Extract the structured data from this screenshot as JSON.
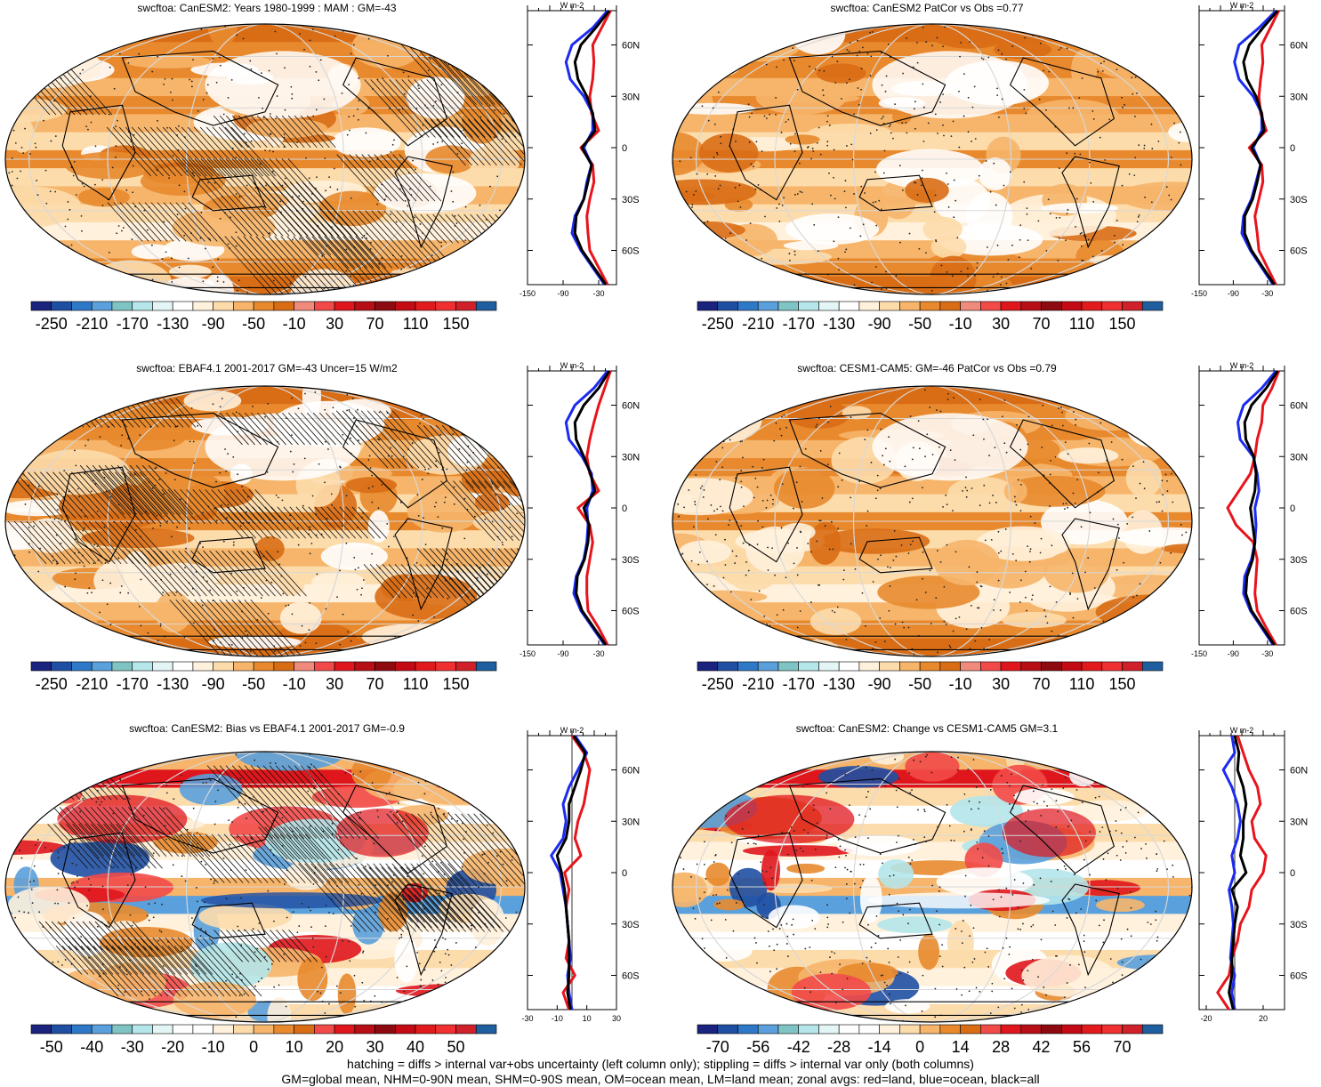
{
  "chart_data": [
    {
      "type": "heatmap",
      "title": "swcftoa: CanESM2: Years 1980-1999 : MAM : GM=-43",
      "colorbar_ticks": [
        "-250",
        "-210",
        "-170",
        "-130",
        "-90",
        "-50",
        "-10",
        "30",
        "70",
        "110",
        "150"
      ],
      "colorbar_colors": [
        "#1a237e",
        "#1f4fa3",
        "#2e78c8",
        "#5aa0dc",
        "#7fc4c4",
        "#b4e6ea",
        "#e3f5f5",
        "#ffffff",
        "#fff1dc",
        "#fddcac",
        "#f6b56a",
        "#e8892d",
        "#d96d15",
        "#f08a7a",
        "#f24a48",
        "#e0161d",
        "#b80e16",
        "#8c0a10",
        "#c40a14",
        "#e31a1c",
        "#f03030",
        "#d0202a",
        "#1f5fa0"
      ],
      "hatching": true,
      "stippling": true,
      "zonal": {
        "y_ticks": [
          "60N",
          "30N",
          "0",
          "30S",
          "60S"
        ],
        "x_ticks": [
          "-150",
          "-90",
          "-30"
        ],
        "unit": "W m-2",
        "lat": [
          80,
          70,
          60,
          50,
          40,
          30,
          20,
          10,
          0,
          -10,
          -20,
          -30,
          -40,
          -50,
          -60,
          -70,
          -80
        ],
        "land": [
          -10,
          -25,
          -40,
          -38,
          -40,
          -45,
          -42,
          -30,
          -60,
          -40,
          -38,
          -45,
          -50,
          -48,
          -45,
          -30,
          -15
        ],
        "ocean": [
          -15,
          -40,
          -75,
          -85,
          -78,
          -55,
          -40,
          -40,
          -55,
          -42,
          -50,
          -55,
          -70,
          -75,
          -60,
          -40,
          -20
        ],
        "all": [
          -12,
          -35,
          -60,
          -70,
          -65,
          -50,
          -40,
          -36,
          -58,
          -42,
          -48,
          -55,
          -68,
          -70,
          -58,
          -38,
          -18
        ]
      }
    },
    {
      "type": "heatmap",
      "title": "swcftoa: CanESM2 PatCor vs Obs =0.77",
      "colorbar_ticks": [
        "-250",
        "-210",
        "-170",
        "-130",
        "-90",
        "-50",
        "-10",
        "30",
        "70",
        "110",
        "150"
      ],
      "hatching": false,
      "stippling": true,
      "zonal": {
        "y_ticks": [
          "60N",
          "30N",
          "0",
          "30S",
          "60S"
        ],
        "x_ticks": [
          "-150",
          "-90",
          "-30"
        ],
        "unit": "W m-2",
        "lat": [
          80,
          70,
          60,
          50,
          40,
          30,
          20,
          10,
          0,
          -10,
          -20,
          -30,
          -40,
          -50,
          -60,
          -70,
          -80
        ],
        "land": [
          -10,
          -25,
          -40,
          -38,
          -42,
          -45,
          -42,
          -32,
          -62,
          -40,
          -38,
          -45,
          -52,
          -48,
          -45,
          -30,
          -15
        ],
        "ocean": [
          -15,
          -45,
          -80,
          -88,
          -80,
          -55,
          -40,
          -40,
          -55,
          -42,
          -50,
          -58,
          -72,
          -75,
          -60,
          -40,
          -20
        ],
        "all": [
          -12,
          -38,
          -62,
          -72,
          -66,
          -50,
          -40,
          -36,
          -58,
          -42,
          -48,
          -56,
          -70,
          -70,
          -58,
          -38,
          -18
        ]
      }
    },
    {
      "type": "heatmap",
      "title": "swcftoa: EBAF4.1 2001-2017 GM=-43 Uncer=15 W/m2",
      "colorbar_ticks": [
        "-250",
        "-210",
        "-170",
        "-130",
        "-90",
        "-50",
        "-10",
        "30",
        "70",
        "110",
        "150"
      ],
      "hatching": true,
      "stippling": true,
      "zonal": {
        "y_ticks": [
          "60N",
          "30N",
          "0",
          "30S",
          "60S"
        ],
        "x_ticks": [
          "-150",
          "-90",
          "-30"
        ],
        "unit": "W m-2",
        "lat": [
          80,
          70,
          60,
          50,
          40,
          30,
          20,
          10,
          0,
          -10,
          -20,
          -30,
          -40,
          -50,
          -60,
          -70,
          -80
        ],
        "land": [
          -10,
          -20,
          -30,
          -38,
          -45,
          -50,
          -45,
          -30,
          -65,
          -45,
          -40,
          -45,
          -50,
          -50,
          -48,
          -30,
          -15
        ],
        "ocean": [
          -15,
          -38,
          -70,
          -85,
          -80,
          -58,
          -42,
          -40,
          -50,
          -48,
          -50,
          -55,
          -68,
          -72,
          -60,
          -40,
          -20
        ],
        "all": [
          -12,
          -30,
          -55,
          -70,
          -68,
          -55,
          -44,
          -36,
          -55,
          -46,
          -48,
          -54,
          -66,
          -68,
          -58,
          -38,
          -18
        ]
      }
    },
    {
      "type": "heatmap",
      "title": "swcftoa: CESM1-CAM5: GM=-46 PatCor vs Obs =0.79",
      "colorbar_ticks": [
        "-250",
        "-210",
        "-170",
        "-130",
        "-90",
        "-50",
        "-10",
        "30",
        "70",
        "110",
        "150"
      ],
      "hatching": false,
      "stippling": true,
      "zonal": {
        "y_ticks": [
          "60N",
          "30N",
          "0",
          "30S",
          "60S"
        ],
        "x_ticks": [
          "-150",
          "-90",
          "-30"
        ],
        "unit": "W m-2",
        "lat": [
          80,
          70,
          60,
          50,
          40,
          30,
          20,
          10,
          0,
          -10,
          -20,
          -30,
          -40,
          -50,
          -60,
          -70,
          -80
        ],
        "land": [
          -10,
          -22,
          -38,
          -40,
          -48,
          -52,
          -60,
          -80,
          -100,
          -85,
          -55,
          -48,
          -50,
          -52,
          -48,
          -32,
          -15
        ],
        "ocean": [
          -15,
          -40,
          -72,
          -82,
          -78,
          -55,
          -48,
          -45,
          -52,
          -50,
          -52,
          -58,
          -70,
          -72,
          -60,
          -40,
          -20
        ],
        "all": [
          -12,
          -32,
          -58,
          -70,
          -68,
          -54,
          -50,
          -52,
          -60,
          -56,
          -52,
          -56,
          -66,
          -68,
          -58,
          -38,
          -18
        ]
      }
    },
    {
      "type": "heatmap",
      "title": "swcftoa: CanESM2: Bias vs EBAF4.1 2001-2017 GM=-0.9",
      "colorbar_ticks": [
        "-50",
        "-40",
        "-30",
        "-20",
        "-10",
        "0",
        "10",
        "20",
        "30",
        "40",
        "50"
      ],
      "hatching": true,
      "stippling": true,
      "zonal": {
        "y_ticks": [
          "60N",
          "30N",
          "0",
          "30S",
          "60S"
        ],
        "x_ticks": [
          "-30",
          "-10",
          "10",
          "30"
        ],
        "unit": "W m-2",
        "lat": [
          80,
          70,
          60,
          50,
          40,
          30,
          20,
          10,
          0,
          -10,
          -20,
          -30,
          -40,
          -50,
          -60,
          -70,
          -80
        ],
        "land": [
          0,
          8,
          12,
          10,
          8,
          4,
          2,
          6,
          -5,
          -2,
          -4,
          -3,
          -2,
          -4,
          2,
          -6,
          -2
        ],
        "ocean": [
          2,
          10,
          4,
          -2,
          -6,
          -4,
          -6,
          -14,
          -8,
          -6,
          -4,
          -3,
          -2,
          -1,
          -3,
          -2,
          0
        ],
        "all": [
          1,
          9,
          6,
          2,
          -2,
          -2,
          -4,
          -10,
          -7,
          -5,
          -4,
          -3,
          -2,
          -2,
          -2,
          -3,
          -1
        ]
      }
    },
    {
      "type": "heatmap",
      "title": "swcftoa: CanESM2: Change vs CESM1-CAM5 GM=3.1",
      "colorbar_ticks": [
        "-70",
        "-56",
        "-42",
        "-28",
        "-14",
        "0",
        "14",
        "28",
        "42",
        "56",
        "70"
      ],
      "hatching": false,
      "stippling": true,
      "zonal": {
        "y_ticks": [
          "60N",
          "30N",
          "0",
          "30S",
          "60S"
        ],
        "x_ticks": [
          "-20",
          "20"
        ],
        "unit": "W m-2",
        "lat": [
          80,
          70,
          60,
          50,
          40,
          30,
          20,
          10,
          0,
          -10,
          -20,
          -30,
          -40,
          -50,
          -60,
          -70,
          -80
        ],
        "land": [
          2,
          6,
          10,
          16,
          18,
          12,
          14,
          22,
          20,
          12,
          10,
          4,
          2,
          -2,
          -4,
          -12,
          -4
        ],
        "ocean": [
          -2,
          0,
          -8,
          -2,
          2,
          4,
          2,
          -2,
          0,
          -4,
          -2,
          -1,
          -2,
          -3,
          0,
          -2,
          0
        ],
        "all": [
          0,
          3,
          2,
          6,
          8,
          6,
          6,
          4,
          8,
          -2,
          2,
          0,
          -1,
          -2,
          -2,
          -4,
          -1
        ]
      }
    }
  ],
  "footnote": {
    "line1": "hatching = diffs > internal var+obs uncertainty (left column only); stippling = diffs > internal var only (both columns)",
    "line2": "GM=global mean, NHM=0-90N mean, SHM=0-90S mean, OM=ocean mean, LM=land mean; zonal avgs: red=land, blue=ocean, black=all"
  }
}
